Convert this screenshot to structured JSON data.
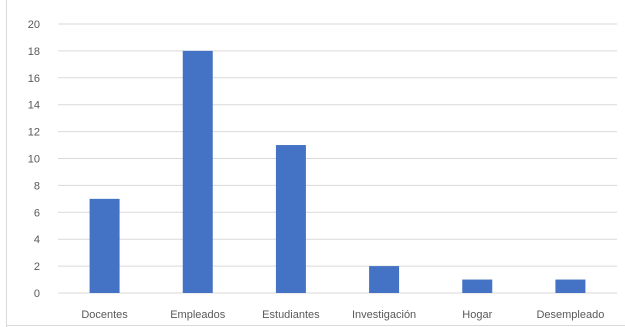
{
  "chart_data": {
    "type": "bar",
    "categories": [
      "Docentes",
      "Empleados",
      "Estudiantes",
      "Investigación",
      "Hogar",
      "Desempleado"
    ],
    "values": [
      7,
      18,
      11,
      2,
      1,
      1
    ],
    "title": "",
    "xlabel": "",
    "ylabel": "",
    "ylim": [
      0,
      20
    ],
    "yticks": [
      "0",
      "2",
      "4",
      "6",
      "8",
      "10",
      "12",
      "14",
      "16",
      "18",
      "20"
    ],
    "grid": true,
    "legend": "none",
    "bar_color": "#4472c4",
    "grid_color": "#d9d9d9"
  }
}
